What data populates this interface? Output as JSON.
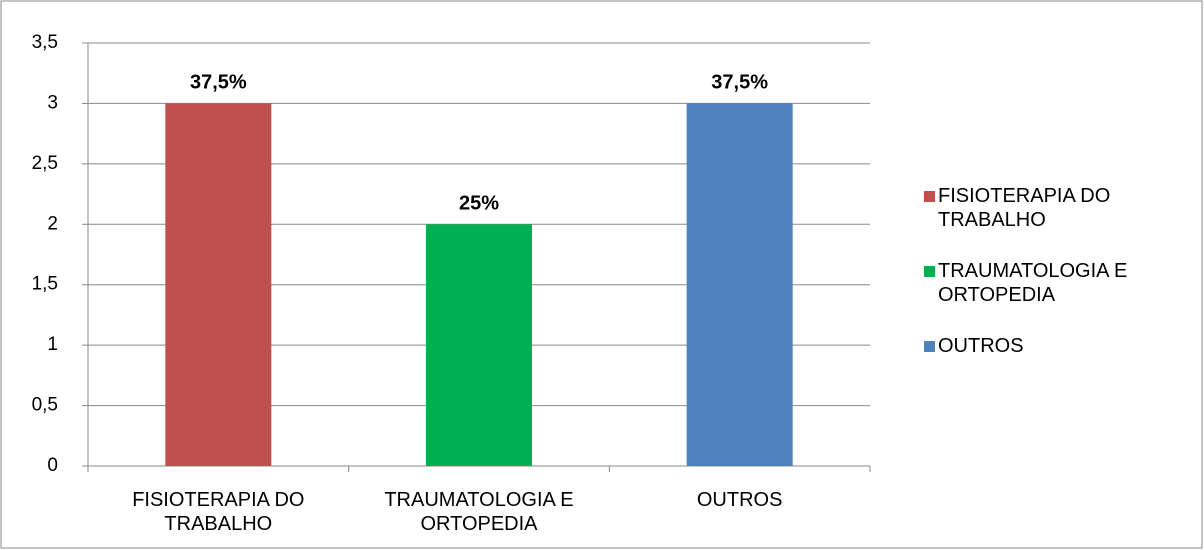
{
  "chart_data": {
    "type": "bar",
    "categories": [
      "FISIOTERAPIA DO TRABALHO",
      "TRAUMATOLOGIA E ORTOPEDIA",
      "OUTROS"
    ],
    "values": [
      3,
      2,
      3
    ],
    "value_labels": [
      "37,5%",
      "25%",
      "37,5%"
    ],
    "colors": [
      "#c0504d",
      "#00b050",
      "#4f81bd"
    ],
    "ylim": [
      0,
      3.5
    ],
    "yticks": [
      0,
      {
        "value": 0.5,
        "label": "0,5"
      },
      1,
      {
        "value": 1.5,
        "label": "1,5"
      },
      2,
      {
        "value": 2.5,
        "label": "2,5"
      },
      3,
      {
        "value": 3.5,
        "label": "3,5"
      }
    ],
    "grid": true,
    "legend": "right"
  }
}
